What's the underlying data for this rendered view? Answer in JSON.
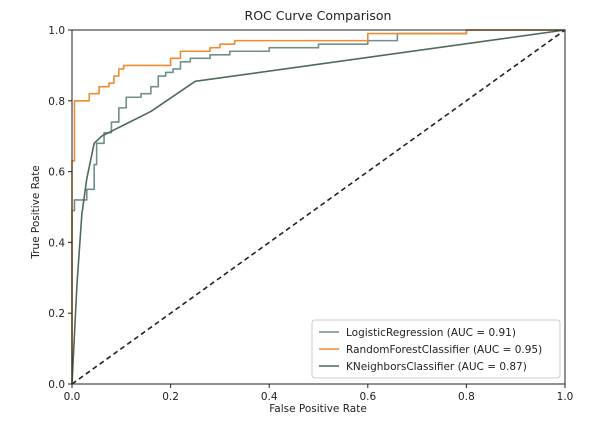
{
  "chart_data": {
    "type": "line",
    "title": "ROC Curve Comparison",
    "xlabel": "False Positive Rate",
    "ylabel": "True Positive Rate",
    "xlim": [
      0.0,
      1.0
    ],
    "ylim": [
      0.0,
      1.0
    ],
    "xticks": [
      "0.0",
      "0.2",
      "0.4",
      "0.6",
      "0.8",
      "1.0"
    ],
    "yticks": [
      "0.0",
      "0.2",
      "0.4",
      "0.6",
      "0.8",
      "1.0"
    ],
    "grid": false,
    "legend_position": "lower-right",
    "series": [
      {
        "name": "LogisticRegression (AUC = 0.91)",
        "color": "#6f8f8a",
        "x": [
          0.0,
          0.0,
          0.005,
          0.005,
          0.015,
          0.015,
          0.03,
          0.03,
          0.045,
          0.045,
          0.05,
          0.05,
          0.065,
          0.065,
          0.08,
          0.08,
          0.095,
          0.095,
          0.11,
          0.11,
          0.13,
          0.13,
          0.14,
          0.14,
          0.16,
          0.16,
          0.175,
          0.175,
          0.19,
          0.19,
          0.205,
          0.205,
          0.22,
          0.22,
          0.24,
          0.24,
          0.28,
          0.28,
          0.32,
          0.32,
          0.4,
          0.4,
          0.5,
          0.5,
          0.6,
          0.6,
          0.66,
          0.66,
          0.8,
          0.8,
          1.0
        ],
        "y": [
          0.0,
          0.49,
          0.49,
          0.52,
          0.52,
          0.52,
          0.52,
          0.55,
          0.55,
          0.62,
          0.62,
          0.68,
          0.68,
          0.71,
          0.71,
          0.74,
          0.74,
          0.78,
          0.78,
          0.81,
          0.81,
          0.81,
          0.81,
          0.82,
          0.82,
          0.84,
          0.84,
          0.87,
          0.87,
          0.88,
          0.88,
          0.89,
          0.89,
          0.91,
          0.91,
          0.92,
          0.92,
          0.93,
          0.93,
          0.94,
          0.94,
          0.95,
          0.95,
          0.96,
          0.96,
          0.97,
          0.97,
          0.99,
          0.99,
          1.0,
          1.0
        ]
      },
      {
        "name": "RandomForestClassifier (AUC = 0.95)",
        "color": "#ed8c33",
        "x": [
          0.0,
          0.0,
          0.005,
          0.005,
          0.035,
          0.035,
          0.055,
          0.055,
          0.075,
          0.075,
          0.085,
          0.085,
          0.095,
          0.095,
          0.105,
          0.105,
          0.2,
          0.2,
          0.22,
          0.22,
          0.28,
          0.28,
          0.3,
          0.3,
          0.33,
          0.33,
          0.6,
          0.6,
          0.8,
          0.8,
          1.0
        ],
        "y": [
          0.0,
          0.63,
          0.63,
          0.8,
          0.8,
          0.82,
          0.82,
          0.84,
          0.84,
          0.85,
          0.85,
          0.87,
          0.87,
          0.89,
          0.89,
          0.9,
          0.9,
          0.92,
          0.92,
          0.94,
          0.94,
          0.95,
          0.95,
          0.96,
          0.96,
          0.97,
          0.97,
          0.99,
          0.99,
          1.0,
          1.0
        ]
      },
      {
        "name": "KNeighborsClassifier (AUC = 0.87)",
        "color": "#4f6b57",
        "x": [
          0.0,
          0.01,
          0.02,
          0.03,
          0.045,
          0.06,
          0.16,
          0.25,
          1.0
        ],
        "y": [
          0.0,
          0.28,
          0.48,
          0.58,
          0.68,
          0.7,
          0.77,
          0.855,
          1.0
        ]
      }
    ],
    "reference_line": {
      "x": [
        0.0,
        1.0
      ],
      "y": [
        0.0,
        1.0
      ],
      "style": "dashed",
      "color": "#222222"
    }
  }
}
